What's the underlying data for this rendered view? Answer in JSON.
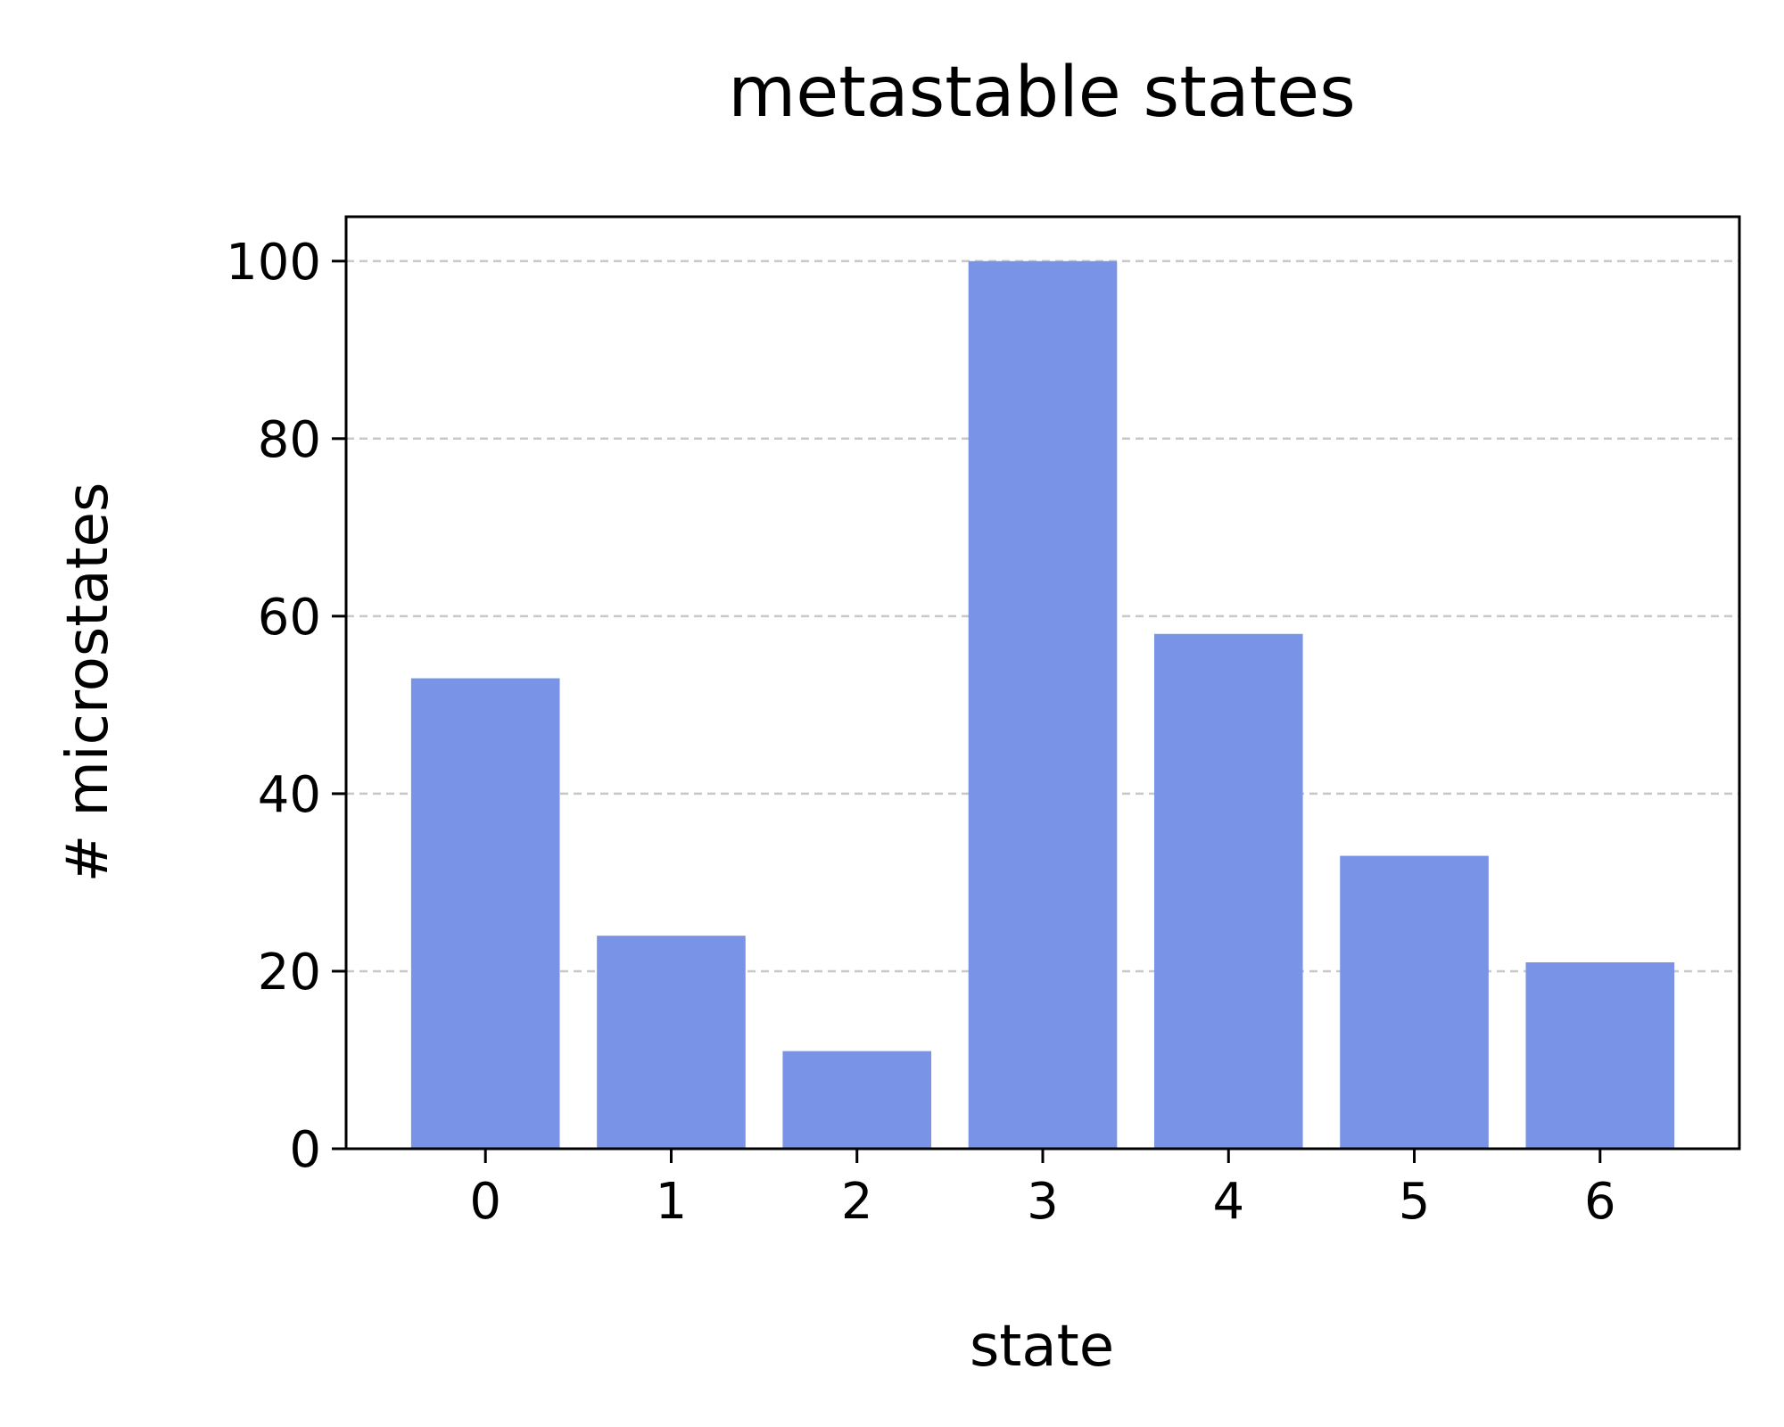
{
  "chart_data": {
    "type": "bar",
    "title": "metastable states",
    "xlabel": "state",
    "ylabel": "# microstates",
    "categories": [
      "0",
      "1",
      "2",
      "3",
      "4",
      "5",
      "6"
    ],
    "values": [
      53,
      24,
      11,
      100,
      58,
      33,
      21
    ],
    "ylim": [
      0,
      105
    ],
    "yticks": [
      0,
      20,
      40,
      60,
      80,
      100
    ],
    "grid": "y-dashed",
    "bar_color": "#7994e6",
    "grid_color": "#c8c8c8"
  }
}
